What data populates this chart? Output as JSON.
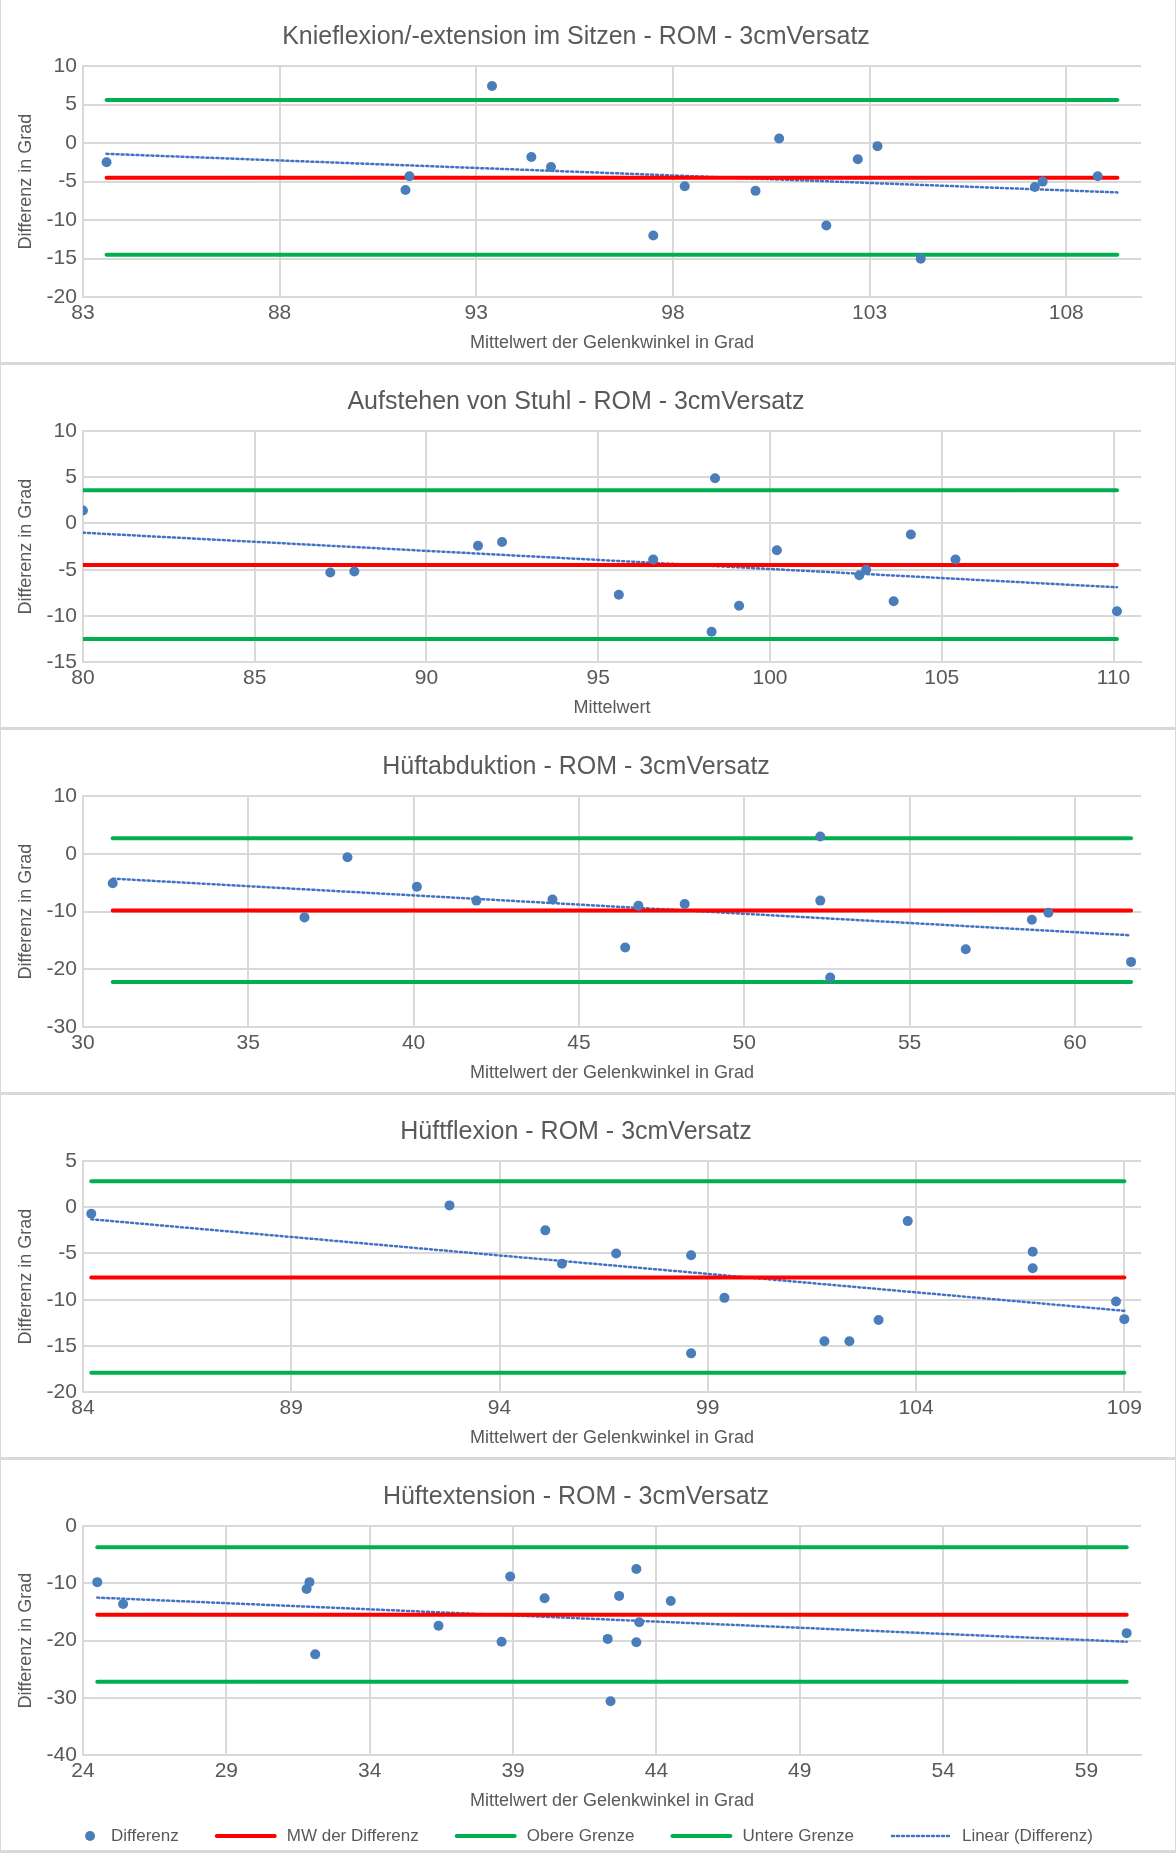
{
  "chart_data": [
    {
      "type": "scatter",
      "title": "Knieflexion/-extension im Sitzen - ROM - 3cmVersatz",
      "xlabel": "Mittelwert der Gelenkwinkel in Grad",
      "ylabel": "Differenz in Grad",
      "xlim": [
        83,
        109.9
      ],
      "xticks": [
        83,
        88,
        93,
        98,
        103,
        108
      ],
      "ylim": [
        -20,
        10
      ],
      "yticks": [
        -20,
        -15,
        -10,
        -5,
        0,
        5,
        10
      ],
      "grid": true,
      "legend": false,
      "series": [
        {
          "type": "scatter",
          "marker": "circle",
          "color": "#4a7ebb",
          "x": [
            83.6,
            91.2,
            91.3,
            93.4,
            94.4,
            94.9,
            97.5,
            98.3,
            100.1,
            100.7,
            101.9,
            102.7,
            103.2,
            104.3,
            107.2,
            107.4,
            108.8
          ],
          "values": [
            -2.5,
            -6.1,
            -4.3,
            7.4,
            -1.8,
            -3.1,
            -12.0,
            -5.6,
            -6.2,
            0.6,
            -10.7,
            -2.1,
            -0.4,
            -15.0,
            -5.7,
            -5.0,
            -4.3
          ]
        },
        {
          "type": "line",
          "marker": "none",
          "line_style": "solid",
          "color": "#ff0000",
          "x": [
            83.6,
            109.3
          ],
          "values": [
            -4.5,
            -4.5
          ]
        },
        {
          "type": "line",
          "marker": "none",
          "line_style": "solid",
          "color": "#00b050",
          "x": [
            83.6,
            109.3
          ],
          "values": [
            5.6,
            5.6
          ]
        },
        {
          "type": "line",
          "marker": "none",
          "line_style": "solid",
          "color": "#00b050",
          "x": [
            83.6,
            109.3
          ],
          "values": [
            -14.5,
            -14.5
          ]
        },
        {
          "type": "line",
          "marker": "none",
          "line_style": "dotted",
          "color": "#4472c4",
          "x": [
            83.6,
            109.3
          ],
          "values": [
            -1.4,
            -6.4
          ]
        }
      ]
    },
    {
      "type": "scatter",
      "title": "Aufstehen von Stuhl - ROM - 3cmVersatz",
      "xlabel": "Mittelwert",
      "ylabel": "Differenz in Grad",
      "xlim": [
        80,
        110.8
      ],
      "xticks": [
        80,
        85,
        90,
        95,
        100,
        105,
        110
      ],
      "ylim": [
        -15,
        10
      ],
      "yticks": [
        -15,
        -10,
        -5,
        0,
        5,
        10
      ],
      "grid": true,
      "legend": false,
      "series": [
        {
          "type": "scatter",
          "marker": "circle",
          "color": "#4a7ebb",
          "x": [
            80.0,
            87.2,
            87.9,
            91.5,
            92.2,
            95.6,
            96.6,
            98.4,
            98.3,
            99.1,
            100.2,
            102.6,
            102.8,
            103.6,
            104.1,
            105.4,
            110.1
          ],
          "values": [
            1.4,
            -5.3,
            -5.2,
            -2.4,
            -2.0,
            -7.7,
            -3.9,
            4.9,
            -11.7,
            -8.9,
            -2.9,
            -5.6,
            -5.0,
            -8.4,
            -1.2,
            -3.9,
            -9.5
          ]
        },
        {
          "type": "line",
          "marker": "none",
          "line_style": "solid",
          "color": "#ff0000",
          "x": [
            80.0,
            110.1
          ],
          "values": [
            -4.5,
            -4.5
          ]
        },
        {
          "type": "line",
          "marker": "none",
          "line_style": "solid",
          "color": "#00b050",
          "x": [
            80.0,
            110.1
          ],
          "values": [
            3.6,
            3.6
          ]
        },
        {
          "type": "line",
          "marker": "none",
          "line_style": "solid",
          "color": "#00b050",
          "x": [
            80.0,
            110.1
          ],
          "values": [
            -12.5,
            -12.5
          ]
        },
        {
          "type": "line",
          "marker": "none",
          "line_style": "dotted",
          "color": "#4472c4",
          "x": [
            80.0,
            110.1
          ],
          "values": [
            -1.0,
            -6.9
          ]
        }
      ]
    },
    {
      "type": "scatter",
      "title": "Hüftabduktion - ROM - 3cmVersatz",
      "xlabel": "Mittelwert der Gelenkwinkel in Grad",
      "ylabel": "Differenz in Grad",
      "xlim": [
        30,
        62
      ],
      "xticks": [
        30,
        35,
        40,
        45,
        50,
        55,
        60
      ],
      "ylim": [
        -30,
        10
      ],
      "yticks": [
        -30,
        -20,
        -10,
        0,
        10
      ],
      "grid": true,
      "legend": false,
      "series": [
        {
          "type": "scatter",
          "marker": "circle",
          "color": "#4a7ebb",
          "x": [
            30.9,
            36.7,
            38.0,
            40.1,
            41.9,
            44.2,
            46.4,
            46.8,
            48.2,
            52.3,
            52.3,
            52.6,
            56.7,
            58.7,
            59.2,
            61.7
          ],
          "values": [
            -5.1,
            -11.0,
            -0.6,
            -5.7,
            -8.1,
            -7.9,
            -16.2,
            -9.0,
            -8.7,
            3.0,
            -8.1,
            -21.4,
            -16.5,
            -11.4,
            -10.2,
            -18.7
          ]
        },
        {
          "type": "line",
          "marker": "none",
          "line_style": "solid",
          "color": "#ff0000",
          "x": [
            30.9,
            61.7
          ],
          "values": [
            -9.8,
            -9.8
          ]
        },
        {
          "type": "line",
          "marker": "none",
          "line_style": "solid",
          "color": "#00b050",
          "x": [
            30.9,
            61.7
          ],
          "values": [
            2.7,
            2.7
          ]
        },
        {
          "type": "line",
          "marker": "none",
          "line_style": "solid",
          "color": "#00b050",
          "x": [
            30.9,
            61.7
          ],
          "values": [
            -22.2,
            -22.2
          ]
        },
        {
          "type": "line",
          "marker": "none",
          "line_style": "dotted",
          "color": "#4472c4",
          "x": [
            30.9,
            61.7
          ],
          "values": [
            -4.3,
            -14.1
          ]
        }
      ]
    },
    {
      "type": "scatter",
      "title": "Hüftflexion - ROM - 3cmVersatz",
      "xlabel": "Mittelwert der Gelenkwinkel in Grad",
      "ylabel": "Differenz in Grad",
      "xlim": [
        84,
        109.4
      ],
      "xticks": [
        84,
        89,
        94,
        99,
        104,
        109
      ],
      "ylim": [
        -20,
        5
      ],
      "yticks": [
        -20,
        -15,
        -10,
        -5,
        0,
        5
      ],
      "grid": true,
      "legend": false,
      "series": [
        {
          "type": "scatter",
          "marker": "circle",
          "color": "#4a7ebb",
          "x": [
            84.2,
            92.8,
            95.1,
            95.5,
            96.8,
            98.6,
            98.6,
            99.4,
            101.8,
            102.4,
            103.1,
            103.8,
            106.8,
            106.8,
            108.8,
            109.0
          ],
          "values": [
            -0.7,
            0.2,
            -2.5,
            -6.1,
            -5.0,
            -5.2,
            -15.8,
            -9.8,
            -14.5,
            -14.5,
            -12.2,
            -1.5,
            -4.8,
            -6.6,
            -10.2,
            -12.1
          ]
        },
        {
          "type": "line",
          "marker": "none",
          "line_style": "solid",
          "color": "#ff0000",
          "x": [
            84.2,
            109.0
          ],
          "values": [
            -7.6,
            -7.6
          ]
        },
        {
          "type": "line",
          "marker": "none",
          "line_style": "solid",
          "color": "#00b050",
          "x": [
            84.2,
            109.0
          ],
          "values": [
            2.8,
            2.8
          ]
        },
        {
          "type": "line",
          "marker": "none",
          "line_style": "solid",
          "color": "#00b050",
          "x": [
            84.2,
            109.0
          ],
          "values": [
            -17.9,
            -17.9
          ]
        },
        {
          "type": "line",
          "marker": "none",
          "line_style": "dotted",
          "color": "#4472c4",
          "x": [
            84.2,
            109.0
          ],
          "values": [
            -1.3,
            -11.2
          ]
        }
      ]
    },
    {
      "type": "scatter",
      "title": "Hüftextension - ROM - 3cmVersatz",
      "xlabel": "Mittelwert der Gelenkwinkel in Grad",
      "ylabel": "Differenz in Grad",
      "xlim": [
        24,
        60.9
      ],
      "xticks": [
        24,
        29,
        34,
        39,
        44,
        49,
        54,
        59
      ],
      "ylim": [
        -40,
        0
      ],
      "yticks": [
        -40,
        -30,
        -20,
        -10,
        0
      ],
      "grid": true,
      "legend": "bottom",
      "series": [
        {
          "name": "Differenz",
          "type": "scatter",
          "marker": "circle",
          "color": "#4a7ebb",
          "x": [
            24.5,
            25.4,
            31.8,
            31.9,
            32.1,
            36.4,
            38.6,
            38.9,
            40.1,
            42.3,
            42.4,
            42.7,
            43.3,
            43.3,
            43.4,
            44.5,
            60.4
          ],
          "values": [
            -9.8,
            -13.6,
            -11.0,
            -9.8,
            -22.4,
            -17.4,
            -20.2,
            -8.8,
            -12.6,
            -19.7,
            -30.6,
            -12.2,
            -20.3,
            -7.5,
            -16.8,
            -13.1,
            -18.7
          ]
        },
        {
          "name": "MW der Differenz",
          "type": "line",
          "marker": "none",
          "line_style": "solid",
          "color": "#ff0000",
          "x": [
            24.5,
            60.4
          ],
          "values": [
            -15.5,
            -15.5
          ]
        },
        {
          "name": "Obere Grenze",
          "type": "line",
          "marker": "none",
          "line_style": "solid",
          "color": "#00b050",
          "x": [
            24.5,
            60.4
          ],
          "values": [
            -3.7,
            -3.7
          ]
        },
        {
          "name": "Untere Grenze",
          "type": "line",
          "marker": "none",
          "line_style": "solid",
          "color": "#00b050",
          "x": [
            24.5,
            60.4
          ],
          "values": [
            -27.2,
            -27.2
          ]
        },
        {
          "name": "Linear (Differenz)",
          "type": "line",
          "marker": "none",
          "line_style": "dotted",
          "color": "#4472c4",
          "x": [
            24.5,
            60.4
          ],
          "values": [
            -12.5,
            -20.2
          ]
        }
      ]
    }
  ]
}
